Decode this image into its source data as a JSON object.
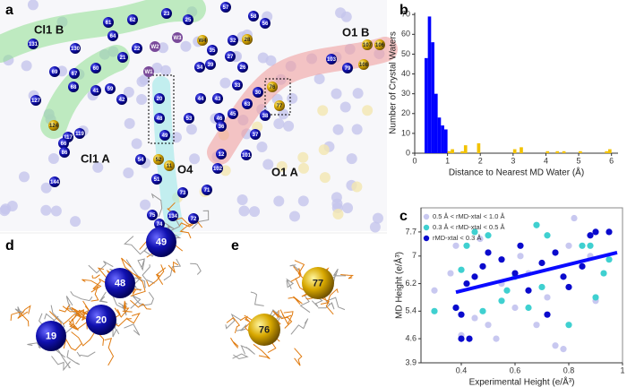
{
  "panel_a": {
    "letter": "a",
    "regions": [
      "Cl1 B",
      "O1 B",
      "Cl1 A",
      "O4",
      "O1 A"
    ],
    "waters": [
      "23",
      "57",
      "58",
      "56",
      "61",
      "62",
      "25",
      "64",
      "22",
      "W3",
      "W4",
      "32",
      "131",
      "130",
      "69",
      "67",
      "60",
      "21",
      "W2",
      "35",
      "27",
      "28",
      "103",
      "79",
      "107",
      "106",
      "108",
      "W1",
      "34",
      "39",
      "68",
      "41",
      "59",
      "26",
      "33",
      "76",
      "20",
      "44",
      "43",
      "30",
      "127",
      "42",
      "77",
      "38",
      "45",
      "63",
      "46",
      "53",
      "48",
      "124",
      "117",
      "119",
      "36",
      "49",
      "37",
      "66",
      "86",
      "52",
      "54",
      "11",
      "101",
      "12",
      "102",
      "144",
      "51",
      "73",
      "71",
      "75",
      "74",
      "134",
      "72"
    ]
  },
  "panel_d": {
    "letter": "d",
    "waters": [
      "19",
      "20",
      "48",
      "49"
    ]
  },
  "panel_e": {
    "letter": "e",
    "waters": [
      "76",
      "77"
    ]
  },
  "chart_data": [
    {
      "type": "histogram",
      "letter": "b",
      "x_label": "Distance to Nearest MD Water (Å)",
      "y_label": "Number of Crystal Waters",
      "xlim": [
        0,
        6.2
      ],
      "ylim": [
        0,
        71
      ],
      "xticks": [
        0,
        1,
        2,
        3,
        4,
        5,
        6
      ],
      "yticks": [
        0,
        10,
        20,
        30,
        40,
        50,
        60,
        70
      ],
      "series": [
        {
          "color": "#0000ff",
          "bins": [
            0.3,
            0.4,
            0.5,
            0.6,
            0.7,
            0.8,
            0.9,
            1.0
          ],
          "counts": [
            48,
            69,
            56,
            30,
            18,
            14,
            12
          ]
        },
        {
          "color": "#f2c200",
          "bins": [
            1.0,
            1.1,
            1.2,
            1.3,
            1.4,
            1.5,
            1.6,
            1.7,
            1.8,
            1.9,
            2.0,
            2.1,
            2.2,
            2.3,
            2.4,
            2.5,
            2.6,
            2.7,
            2.8,
            2.9,
            3.0,
            3.1,
            3.2,
            3.3,
            3.4,
            3.5,
            3.6,
            3.7,
            3.8,
            3.9,
            4.0,
            4.1,
            4.2,
            4.3,
            4.4,
            4.5,
            4.6,
            4.7,
            4.8,
            4.9,
            5.0,
            5.1,
            5.2,
            5.3,
            5.4,
            5.5,
            5.6,
            5.7,
            5.8,
            5.9,
            6.0
          ],
          "counts": [
            1,
            2,
            0,
            0,
            1,
            4,
            0,
            0,
            0,
            5,
            0,
            0,
            0,
            0,
            0,
            0,
            0,
            0,
            0,
            0,
            2,
            0,
            3,
            0,
            0,
            0,
            0,
            0,
            0,
            0,
            1,
            0,
            0,
            1,
            0,
            1,
            0,
            0,
            0,
            0,
            1,
            0,
            0,
            0,
            0,
            0,
            0,
            0,
            1,
            2
          ]
        }
      ]
    },
    {
      "type": "scatter",
      "letter": "c",
      "x_label": "Experimental Height (e/Å³)",
      "y_label": "MD Height (e/Å³)",
      "xlim": [
        0.25,
        1.0
      ],
      "ylim": [
        3.9,
        8.4
      ],
      "xticks": [
        0.4,
        0.6,
        0.8,
        1.0
      ],
      "yticks": [
        3.9,
        4.6,
        5.4,
        6.2,
        7.0,
        7.7
      ],
      "legend": "top-left",
      "series": [
        {
          "name": "0.5 Å < rMD-xtal < 1.0 Å",
          "color": "#c8c8f0",
          "x": [
            0.3,
            0.36,
            0.4,
            0.45,
            0.47,
            0.5,
            0.55,
            0.6,
            0.62,
            0.65,
            0.72,
            0.75,
            0.78,
            0.8,
            0.82,
            0.88,
            0.9,
            0.38,
            0.53,
            0.68
          ],
          "y": [
            6.0,
            6.5,
            4.7,
            5.2,
            7.5,
            5.0,
            6.2,
            5.5,
            7.0,
            6.5,
            5.8,
            4.4,
            4.3,
            7.3,
            8.1,
            7.0,
            5.7,
            7.3,
            4.6,
            5.0
          ]
        },
        {
          "name": "0.3 Å < rMD-xtal < 0.5 Å",
          "color": "#3fd0d0",
          "x": [
            0.3,
            0.4,
            0.42,
            0.45,
            0.5,
            0.55,
            0.57,
            0.6,
            0.65,
            0.68,
            0.7,
            0.72,
            0.8,
            0.85,
            0.88,
            0.9,
            0.93,
            0.95,
            0.38,
            0.48
          ],
          "y": [
            5.4,
            6.6,
            7.3,
            7.7,
            7.6,
            5.7,
            6.0,
            6.4,
            5.5,
            7.9,
            6.1,
            7.6,
            5.0,
            7.3,
            7.3,
            5.8,
            6.5,
            6.9,
            5.5,
            5.4
          ]
        },
        {
          "name": "rMD-xtal < 0.3 Å",
          "color": "#0a0acd",
          "x": [
            0.38,
            0.4,
            0.42,
            0.45,
            0.48,
            0.5,
            0.55,
            0.6,
            0.62,
            0.65,
            0.7,
            0.72,
            0.75,
            0.78,
            0.8,
            0.85,
            0.88,
            0.9,
            0.95,
            0.4,
            0.43
          ],
          "y": [
            5.5,
            5.3,
            6.2,
            6.4,
            6.7,
            7.1,
            6.9,
            6.5,
            7.3,
            6.0,
            6.8,
            5.3,
            7.1,
            6.4,
            6.1,
            6.7,
            7.6,
            7.7,
            7.7,
            4.6,
            4.6
          ]
        }
      ],
      "fit": {
        "color": "#0a0aff",
        "x": [
          0.38,
          0.98
        ],
        "y": [
          5.95,
          7.1
        ]
      }
    }
  ]
}
